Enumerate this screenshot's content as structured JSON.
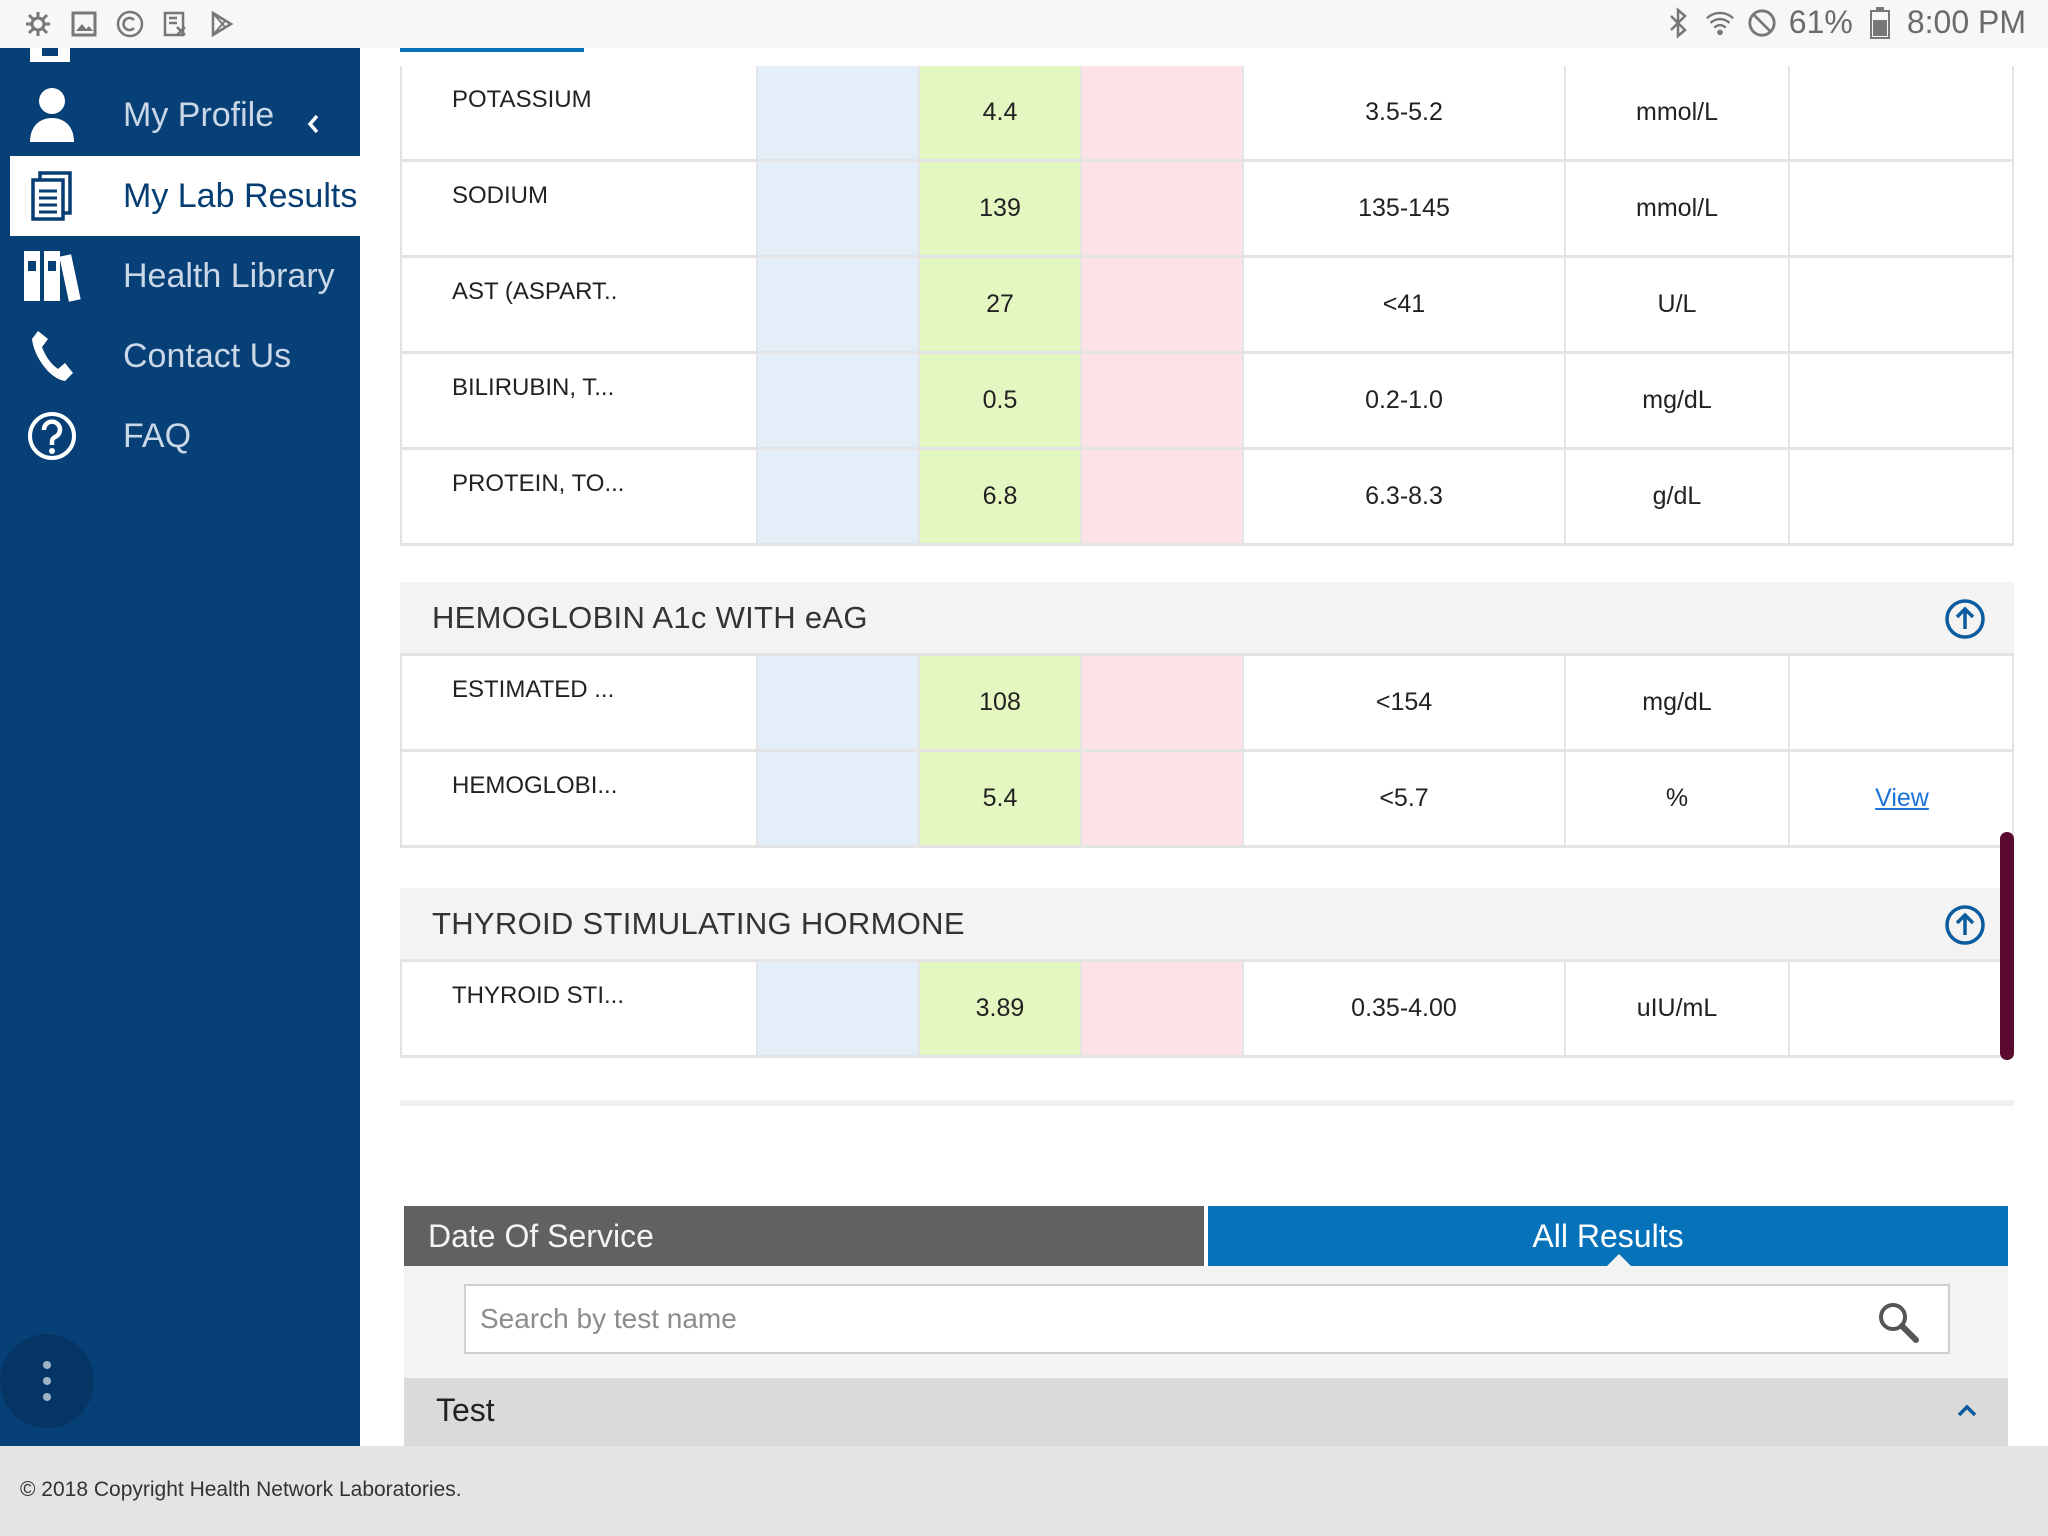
{
  "status_bar": {
    "battery": "61%",
    "time": "8:00 PM",
    "left_icons": [
      "settings-bug-icon",
      "gallery-icon",
      "copyright-icon",
      "rx-icon",
      "play-store-icon"
    ],
    "right_icons": [
      "bluetooth-icon",
      "wifi-icon",
      "do-not-disturb-icon",
      "battery-icon"
    ]
  },
  "sidebar": {
    "items": [
      {
        "label": "My Profile",
        "icon": "user-icon",
        "active": false
      },
      {
        "label": "My Lab Results",
        "icon": "document-icon",
        "active": true
      },
      {
        "label": "Health Library",
        "icon": "books-icon",
        "active": false
      },
      {
        "label": "Contact Us",
        "icon": "phone-icon",
        "active": false
      },
      {
        "label": "FAQ",
        "icon": "help-icon",
        "active": false
      }
    ],
    "menu_icon": "more-vert-icon"
  },
  "results_table_1": [
    {
      "name": "POTASSIUM",
      "value": "4.4",
      "range": "3.5-5.2",
      "unit": "mmol/L",
      "link": ""
    },
    {
      "name": "SODIUM",
      "value": "139",
      "range": "135-145",
      "unit": "mmol/L",
      "link": ""
    },
    {
      "name": "AST (ASPART..",
      "value": "27",
      "range": "<41",
      "unit": "U/L",
      "link": ""
    },
    {
      "name": "BILIRUBIN, T...",
      "value": "0.5",
      "range": "0.2-1.0",
      "unit": "mg/dL",
      "link": ""
    },
    {
      "name": "PROTEIN, TO...",
      "value": "6.8",
      "range": "6.3-8.3",
      "unit": "g/dL",
      "link": ""
    }
  ],
  "section_hba1c": {
    "title": "HEMOGLOBIN A1c WITH eAG",
    "rows": [
      {
        "name": "ESTIMATED ...",
        "value": "108",
        "range": "<154",
        "unit": "mg/dL",
        "link": ""
      },
      {
        "name": "HEMOGLOBI...",
        "value": "5.4",
        "range": "<5.7",
        "unit": "%",
        "link": "View"
      }
    ]
  },
  "section_tsh": {
    "title": "THYROID STIMULATING HORMONE",
    "rows": [
      {
        "name": "THYROID STI...",
        "value": "3.89",
        "range": "0.35-4.00",
        "unit": "uIU/mL",
        "link": ""
      }
    ]
  },
  "bottom_tabs": {
    "date_of_service": "Date Of Service",
    "all_results": "All Results"
  },
  "search": {
    "placeholder": "Search by test name",
    "value": ""
  },
  "test_header": "Test",
  "footer": "© 2018 Copyright Health Network Laboratories.",
  "colors": {
    "sidebar_bg": "#073f77",
    "accent_blue": "#0672b9",
    "low_band": "#e4eef8",
    "normal_band": "#e5f7c1",
    "high_band": "#fde3e5",
    "link": "#1a73d9",
    "scroll_thumb": "#5a0a2e"
  }
}
